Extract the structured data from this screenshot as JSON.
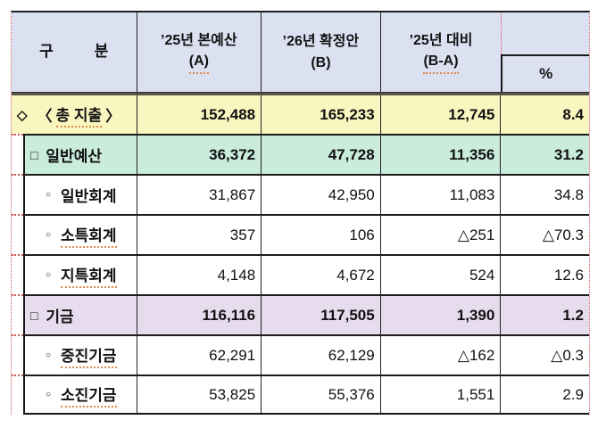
{
  "header": {
    "col1_left": "구",
    "col1_right": "분",
    "col2": {
      "line1": "’25년 본예산",
      "line2": "(A)"
    },
    "col3": {
      "line1": "’26년 확정안",
      "line2": "(B)"
    },
    "col4": {
      "line1": "’25년 대비",
      "line2": "(B-A)"
    },
    "col5": "%"
  },
  "rows": [
    {
      "bullet": "◇",
      "prefix": "〈",
      "label": "총 지출",
      "suffix": "〉",
      "a": "152,488",
      "b": "165,233",
      "diff": "12,745",
      "pct": "8.4"
    },
    {
      "bullet": "□",
      "label": "일반예산",
      "a": "36,372",
      "b": "47,728",
      "diff": "11,356",
      "pct": "31.2"
    },
    {
      "bullet": "○",
      "label": "일반회계",
      "a": "31,867",
      "b": "42,950",
      "diff": "11,083",
      "pct": "34.8"
    },
    {
      "bullet": "○",
      "label": "소특회계",
      "a": "357",
      "b": "106",
      "diff": "△251",
      "pct": "△70.3"
    },
    {
      "bullet": "○",
      "label": "지특회계",
      "a": "4,148",
      "b": "4,672",
      "diff": "524",
      "pct": "12.6"
    },
    {
      "bullet": "□",
      "label": "기금",
      "a": "116,116",
      "b": "117,505",
      "diff": "1,390",
      "pct": "1.2"
    },
    {
      "bullet": "○",
      "label": "중진기금",
      "a": "62,291",
      "b": "62,129",
      "diff": "△162",
      "pct": "△0.3"
    },
    {
      "bullet": "○",
      "label": "소진기금",
      "a": "53,825",
      "b": "55,376",
      "diff": "1,551",
      "pct": "2.9"
    }
  ],
  "colors": {
    "header_bg": "#dce1f2",
    "total_row_bg": "#f9f6c0",
    "budget_row_bg": "#c9ecdc",
    "fund_row_bg": "#e7dcee",
    "grid_dotted": "#cc5555",
    "spellcheck": "#e08a4e"
  }
}
